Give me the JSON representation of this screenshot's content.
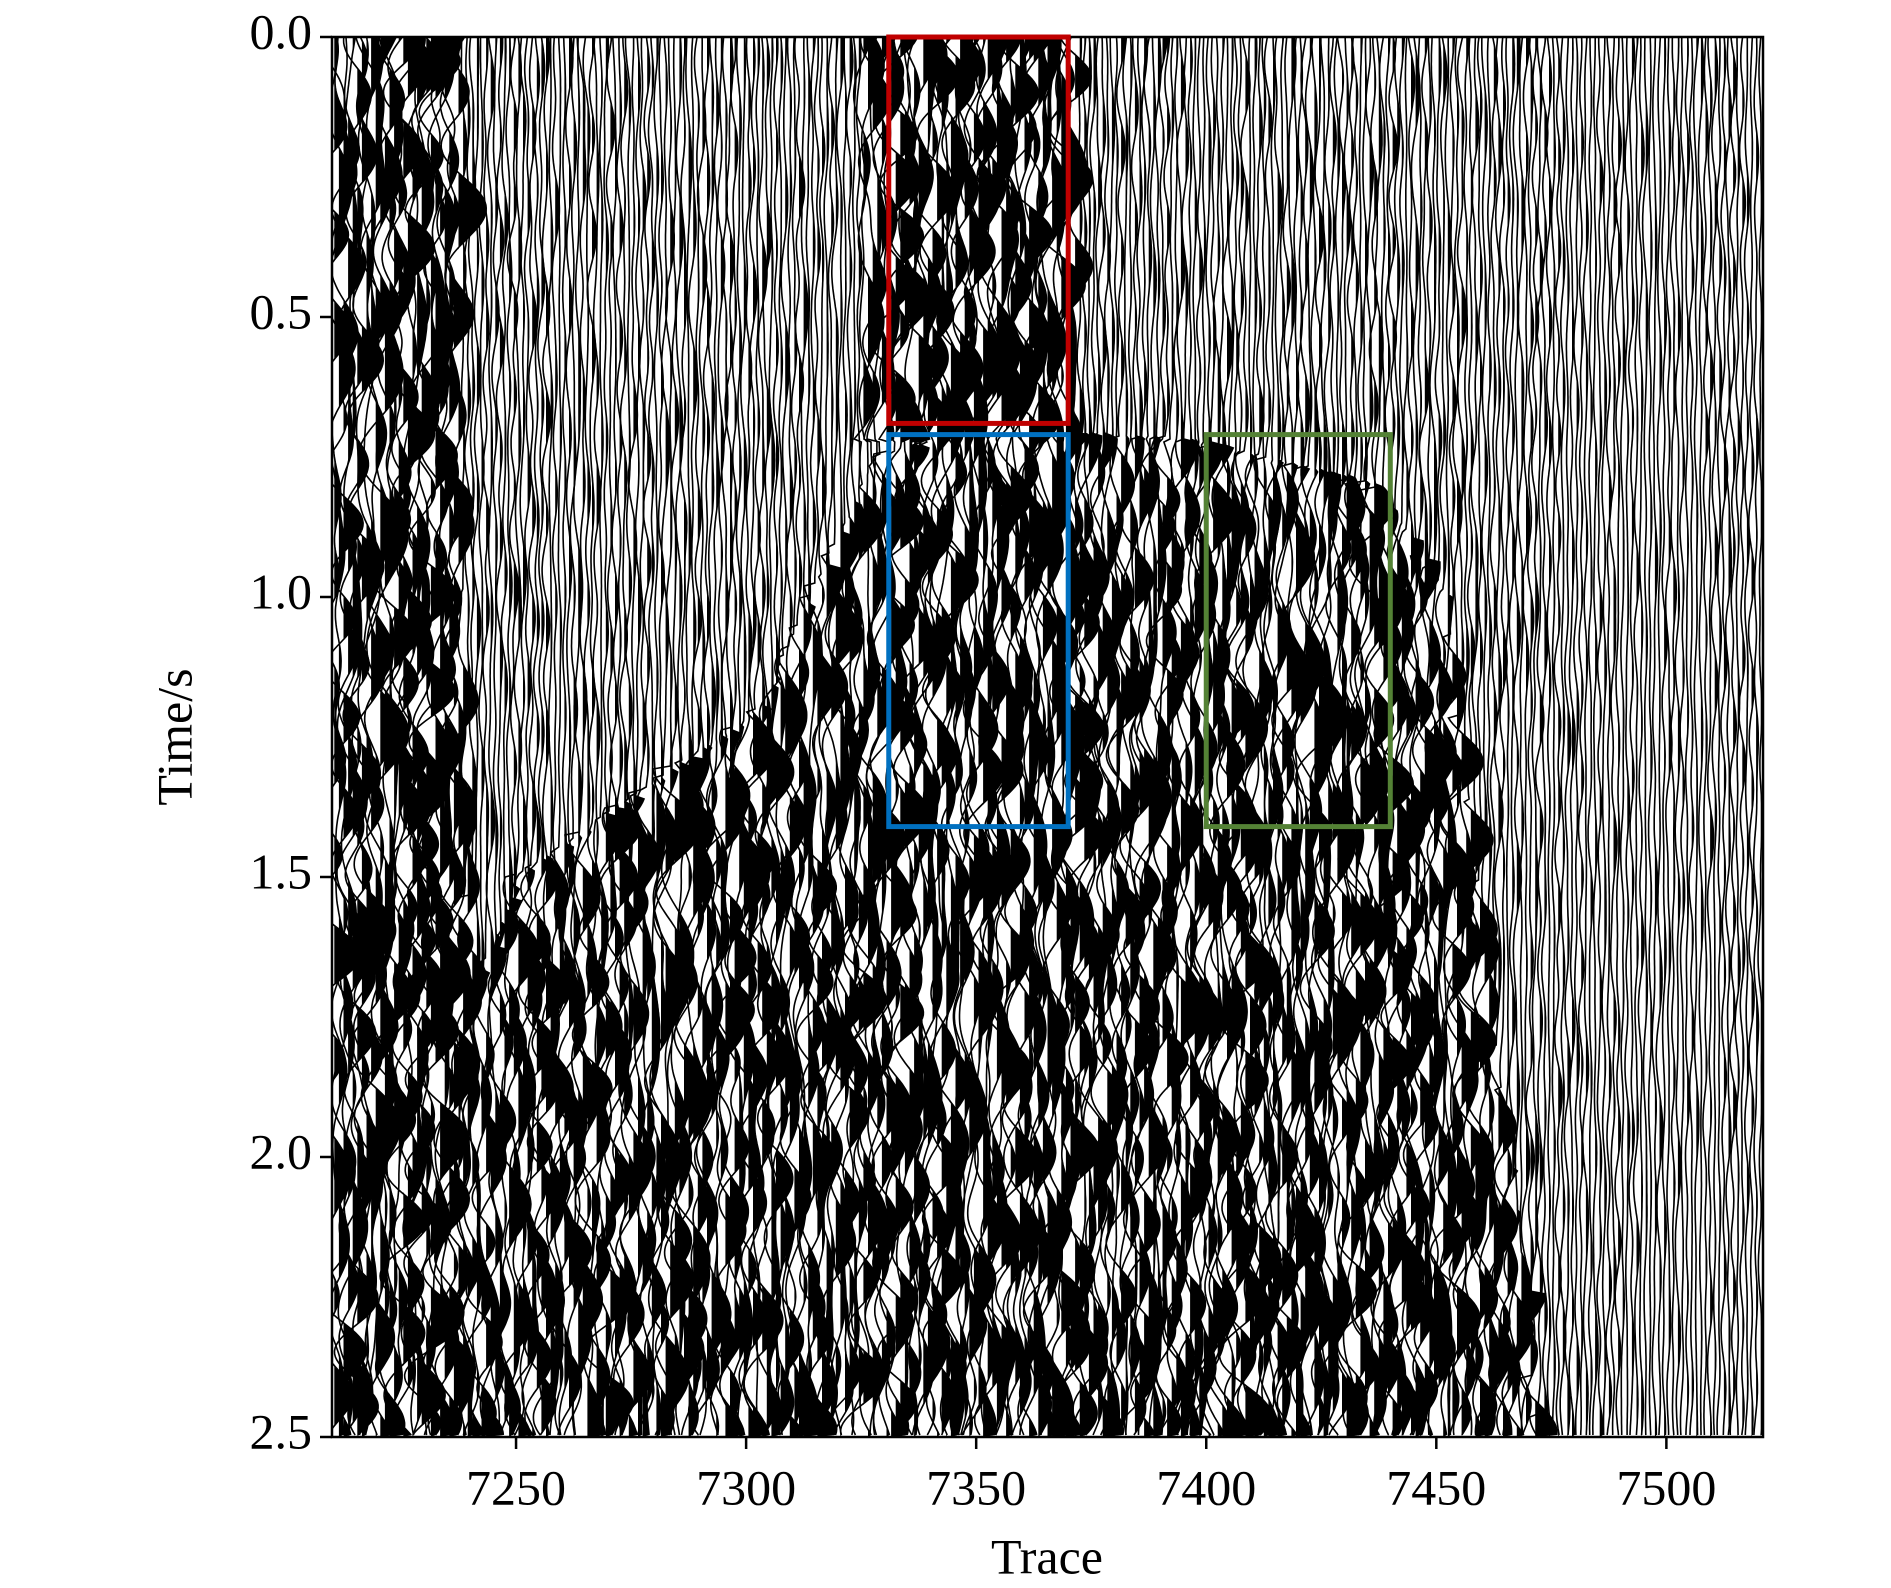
{
  "chart_data": {
    "type": "wiggle",
    "xlabel": "Trace",
    "ylabel": "Time/s",
    "xlim": [
      7210,
      7521
    ],
    "xticks": [
      7250,
      7300,
      7350,
      7400,
      7450,
      7500
    ],
    "ylim": [
      0,
      2.5
    ],
    "yticks": [
      {
        "value": 0,
        "label": "0.0"
      },
      0.5,
      {
        "value": 1,
        "label": "1.0"
      },
      1.5,
      {
        "value": 2,
        "label": "2.0"
      },
      2.5
    ],
    "y_inverted": true,
    "trace_color": "#000000",
    "boxes": [
      {
        "color": "#c00000",
        "x": [
          7331,
          7370
        ],
        "y": [
          0,
          0.69
        ]
      },
      {
        "color": "#0070c0",
        "x": [
          7331,
          7370
        ],
        "y": [
          0.71,
          1.41
        ]
      },
      {
        "color": "#548235",
        "x": [
          7400,
          7440
        ],
        "y": [
          0.71,
          1.41
        ]
      }
    ]
  }
}
